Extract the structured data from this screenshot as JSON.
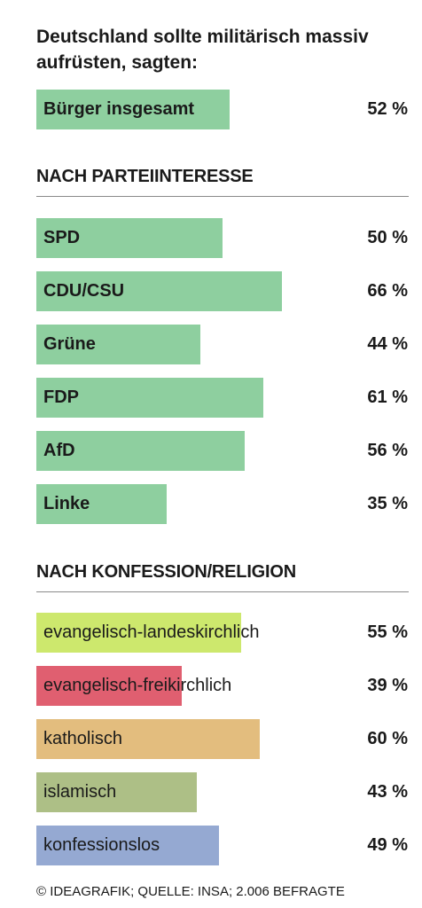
{
  "title": "Deutschland sollte militärisch massiv aufrüsten, sagten:",
  "footer": "© IDEAGRAFIK; QUELLE: INSA; 2.006 BEFRAGTE",
  "colors": {
    "party_green": "#8ecf9f",
    "evangelisch_landeskirchlich": "#cde86d",
    "evangelisch_freikirchlich": "#e05f70",
    "katholisch": "#e3bd7e",
    "islamisch": "#adbf86",
    "konfessionslos": "#95a9d2"
  },
  "chart_data": {
    "type": "bar",
    "orientation": "horizontal",
    "unit": "%",
    "xlim": [
      0,
      100
    ],
    "groups": [
      {
        "heading": "",
        "bold_labels": true,
        "bars": [
          {
            "label": "Bürger insgesamt",
            "value": 52,
            "display": "52 %",
            "color": "#8ecf9f"
          }
        ]
      },
      {
        "heading": "NACH PARTEIINTERESSE",
        "bold_labels": true,
        "bars": [
          {
            "label": "SPD",
            "value": 50,
            "display": "50 %",
            "color": "#8ecf9f"
          },
          {
            "label": "CDU/CSU",
            "value": 66,
            "display": "66 %",
            "color": "#8ecf9f"
          },
          {
            "label": "Grüne",
            "value": 44,
            "display": "44 %",
            "color": "#8ecf9f"
          },
          {
            "label": "FDP",
            "value": 61,
            "display": "61 %",
            "color": "#8ecf9f"
          },
          {
            "label": "AfD",
            "value": 56,
            "display": "56 %",
            "color": "#8ecf9f"
          },
          {
            "label": "Linke",
            "value": 35,
            "display": "35 %",
            "color": "#8ecf9f"
          }
        ]
      },
      {
        "heading": "NACH KONFESSION/RELIGION",
        "bold_labels": false,
        "bars": [
          {
            "label": "evangelisch-landeskirchlich",
            "value": 55,
            "display": "55 %",
            "color": "#cde86d"
          },
          {
            "label": "evangelisch-freikirchlich",
            "value": 39,
            "display": "39 %",
            "color": "#e05f70"
          },
          {
            "label": "katholisch",
            "value": 60,
            "display": "60 %",
            "color": "#e3bd7e"
          },
          {
            "label": "islamisch",
            "value": 43,
            "display": "43 %",
            "color": "#adbf86"
          },
          {
            "label": "konfessionslos",
            "value": 49,
            "display": "49 %",
            "color": "#95a9d2"
          }
        ]
      }
    ]
  }
}
